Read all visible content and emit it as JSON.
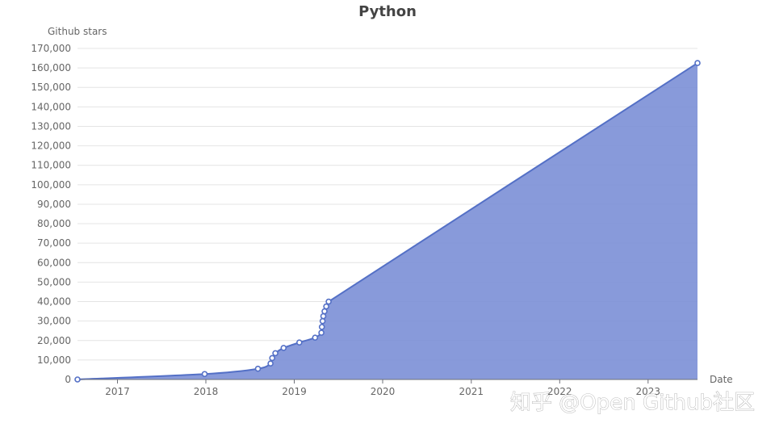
{
  "chart_data": {
    "type": "area",
    "title": "Python",
    "ylabel": "Github stars",
    "xlabel": "Date",
    "ylim": [
      0,
      170000
    ],
    "y_ticks": [
      0,
      10000,
      20000,
      30000,
      40000,
      50000,
      60000,
      70000,
      80000,
      90000,
      100000,
      110000,
      120000,
      130000,
      140000,
      150000,
      160000,
      170000
    ],
    "y_tick_labels": [
      "0",
      "10,000",
      "20,000",
      "30,000",
      "40,000",
      "50,000",
      "60,000",
      "70,000",
      "80,000",
      "90,000",
      "100,000",
      "110,000",
      "120,000",
      "130,000",
      "140,000",
      "150,000",
      "160,000",
      "170,000"
    ],
    "xlim": [
      "2016-07-20",
      "2023-07-24"
    ],
    "x_ticks": [
      "2017-01-01",
      "2018-01-01",
      "2019-01-01",
      "2020-01-01",
      "2021-01-01",
      "2022-01-01",
      "2023-01-01"
    ],
    "x_tick_labels": [
      "2017",
      "2018",
      "2019",
      "2020",
      "2021",
      "2022",
      "2023"
    ],
    "grid": true,
    "series": [
      {
        "name": "",
        "color": "#5470c6",
        "fill_color": "#7b8fd6",
        "x": [
          "2016-07-20",
          "2017-12-27",
          "2018-08-04",
          "2018-09-25",
          "2018-10-02",
          "2018-10-15",
          "2018-11-18",
          "2019-01-22",
          "2019-03-28",
          "2019-04-23",
          "2019-04-25",
          "2019-04-28",
          "2019-05-01",
          "2019-05-06",
          "2019-05-13",
          "2019-05-23",
          "2023-07-24"
        ],
        "values": [
          0,
          2800,
          5500,
          8200,
          11000,
          13500,
          16200,
          19000,
          21500,
          24000,
          27000,
          30000,
          32500,
          35000,
          37500,
          40000,
          162500
        ]
      }
    ],
    "watermark": "知乎 @Open Github社区"
  }
}
